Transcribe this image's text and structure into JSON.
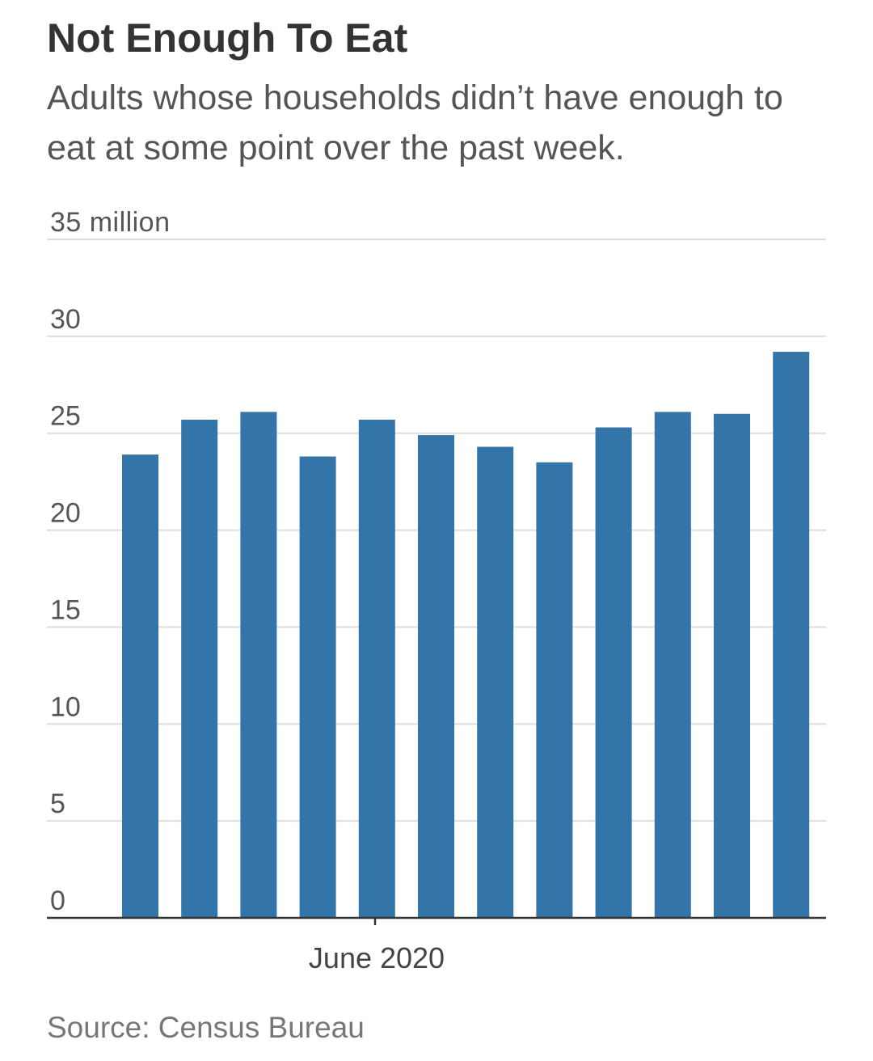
{
  "chart_data": {
    "type": "bar",
    "title": "Not Enough To Eat",
    "subtitle": "Adults whose households didn’t have enough to eat at some point over the past week.",
    "source": "Source: Census Bureau",
    "ylabel_unit": "million",
    "ylim": [
      0,
      35
    ],
    "yticks": [
      0,
      5,
      10,
      15,
      20,
      25,
      30,
      35
    ],
    "ytick_labels": [
      "0",
      "5",
      "10",
      "15",
      "20",
      "25",
      "30",
      "35 million"
    ],
    "xtick_label": "June 2020",
    "grid": true,
    "bar_color": "#3475a9",
    "values": [
      23.9,
      25.7,
      26.1,
      23.8,
      25.7,
      24.9,
      24.3,
      23.5,
      25.3,
      26.1,
      26.0,
      29.2
    ]
  }
}
